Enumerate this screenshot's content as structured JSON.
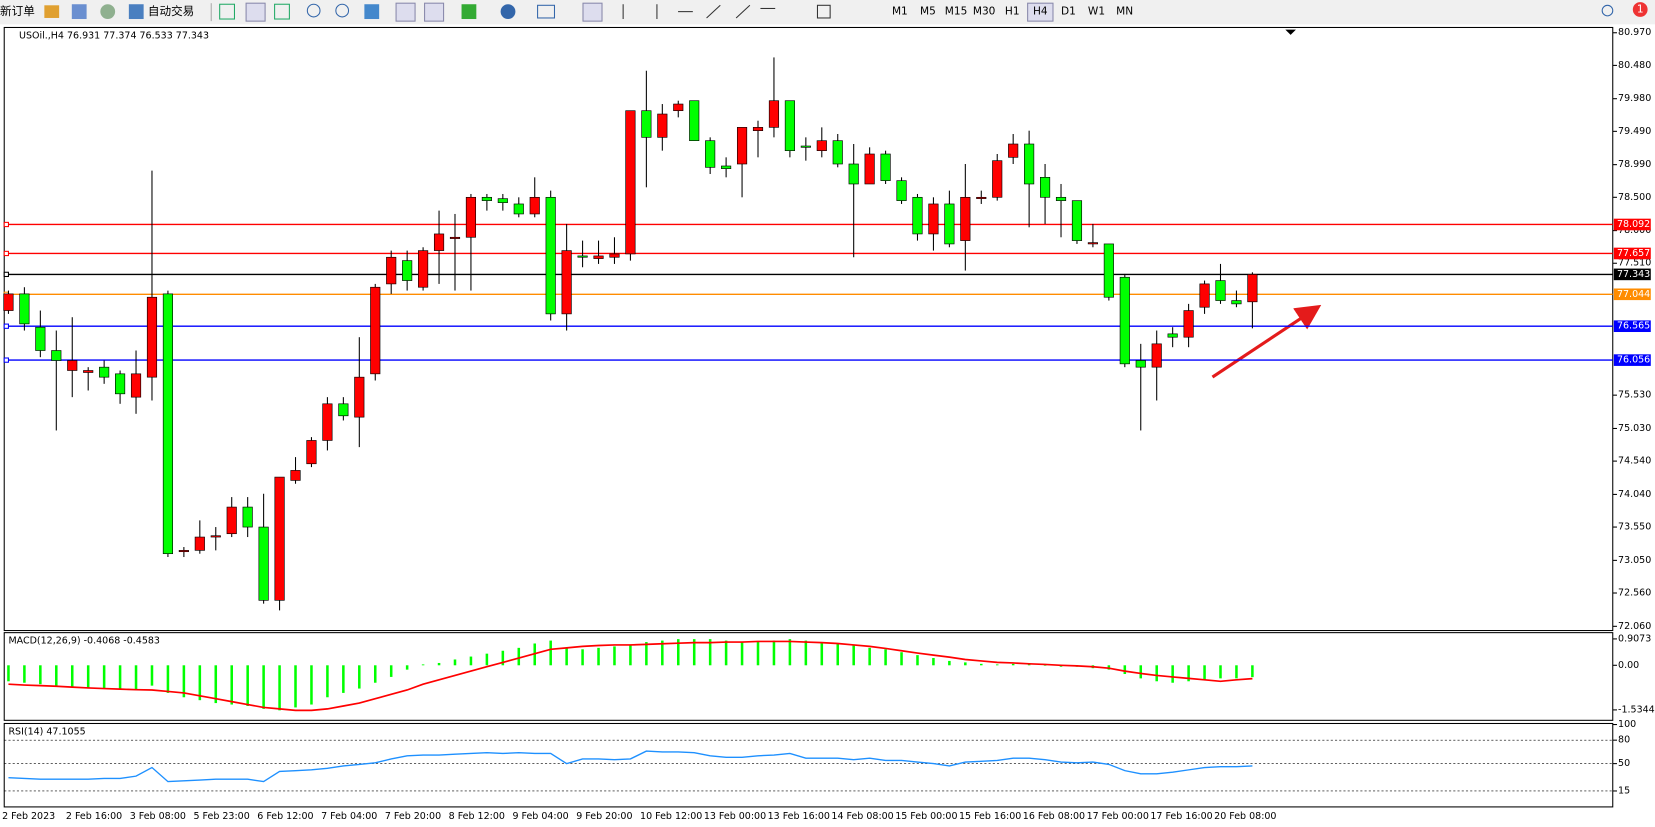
{
  "toolbar": {
    "new_order": "新订单",
    "auto_trading": "自动交易",
    "timeframes": [
      "M1",
      "M5",
      "M15",
      "M30",
      "H1",
      "H4",
      "D1",
      "W1",
      "MN"
    ],
    "active_timeframe": 5,
    "notifications": "1"
  },
  "chart_data": [
    {
      "type": "candlestick",
      "title": "USOil.,H4 76.931 77.374 76.533 77.343",
      "up_color": "#ff0000",
      "down_color": "#00ff00",
      "categories": [
        "2 Feb 2023",
        null,
        null,
        null,
        "2 Feb 16:00",
        null,
        null,
        null,
        "3 Feb 08:00",
        null,
        null,
        null,
        "5 Feb 23:00",
        null,
        null,
        null,
        "6 Feb 12:00",
        null,
        null,
        null,
        "7 Feb 04:00",
        null,
        null,
        null,
        "7 Feb 20:00",
        null,
        null,
        null,
        "8 Feb 12:00",
        null,
        null,
        null,
        "9 Feb 04:00",
        null,
        null,
        null,
        "9 Feb 20:00",
        null,
        null,
        null,
        "10 Feb 12:00",
        null,
        null,
        null,
        "13 Feb 00:00",
        null,
        null,
        null,
        "13 Feb 16:00",
        null,
        null,
        null,
        "14 Feb 08:00",
        null,
        null,
        null,
        "15 Feb 00:00",
        null,
        null,
        null,
        "15 Feb 16:00",
        null,
        null,
        null,
        "16 Feb 08:00",
        null,
        null,
        null,
        "17 Feb 00:00",
        null,
        null,
        null,
        "17 Feb 16:00",
        null,
        null,
        null,
        "20 Feb 08:00",
        null,
        null
      ],
      "ohlc": [
        [
          76.8,
          77.1,
          76.75,
          77.05
        ],
        [
          77.05,
          77.15,
          76.5,
          76.6
        ],
        [
          76.55,
          76.8,
          76.1,
          76.2
        ],
        [
          76.2,
          76.5,
          75.0,
          76.05
        ],
        [
          75.9,
          76.7,
          75.5,
          76.05
        ],
        [
          75.87,
          75.95,
          75.6,
          75.9
        ],
        [
          75.95,
          76.05,
          75.7,
          75.8
        ],
        [
          75.85,
          75.9,
          75.4,
          75.55
        ],
        [
          75.5,
          76.2,
          75.25,
          75.85
        ],
        [
          75.8,
          78.9,
          75.45,
          77.0
        ],
        [
          77.05,
          77.1,
          73.1,
          73.15
        ],
        [
          73.18,
          73.25,
          73.1,
          73.2
        ],
        [
          73.2,
          73.65,
          73.15,
          73.4
        ],
        [
          73.4,
          73.55,
          73.2,
          73.42
        ],
        [
          73.45,
          74.0,
          73.4,
          73.85
        ],
        [
          73.85,
          74.0,
          73.4,
          73.55
        ],
        [
          73.55,
          74.05,
          72.4,
          72.45
        ],
        [
          72.45,
          74.3,
          72.3,
          74.3
        ],
        [
          74.25,
          74.6,
          74.2,
          74.4
        ],
        [
          74.5,
          74.9,
          74.45,
          74.85
        ],
        [
          74.85,
          75.5,
          74.7,
          75.4
        ],
        [
          75.4,
          75.5,
          75.15,
          75.22
        ],
        [
          75.2,
          76.4,
          74.75,
          75.8
        ],
        [
          75.85,
          77.2,
          75.75,
          77.15
        ],
        [
          77.2,
          77.7,
          77.05,
          77.6
        ],
        [
          77.55,
          77.7,
          77.1,
          77.25
        ],
        [
          77.15,
          77.75,
          77.1,
          77.7
        ],
        [
          77.7,
          78.3,
          77.2,
          77.95
        ],
        [
          77.88,
          78.25,
          77.1,
          77.9
        ],
        [
          77.9,
          78.55,
          77.1,
          78.5
        ],
        [
          78.5,
          78.55,
          78.3,
          78.45
        ],
        [
          78.48,
          78.55,
          78.3,
          78.42
        ],
        [
          78.4,
          78.5,
          78.2,
          78.25
        ],
        [
          78.25,
          78.8,
          78.2,
          78.5
        ],
        [
          78.5,
          78.6,
          76.65,
          76.75
        ],
        [
          76.75,
          78.1,
          76.5,
          77.7
        ],
        [
          77.62,
          77.85,
          77.45,
          77.6
        ],
        [
          77.58,
          77.85,
          77.5,
          77.62
        ],
        [
          77.6,
          77.9,
          77.5,
          77.65
        ],
        [
          77.65,
          79.8,
          77.55,
          79.8
        ],
        [
          79.8,
          80.4,
          78.65,
          79.4
        ],
        [
          79.4,
          79.9,
          79.2,
          79.75
        ],
        [
          79.8,
          79.95,
          79.7,
          79.9
        ],
        [
          79.95,
          79.95,
          79.35,
          79.35
        ],
        [
          79.35,
          79.4,
          78.85,
          78.95
        ],
        [
          78.97,
          79.1,
          78.8,
          78.93
        ],
        [
          79.0,
          79.55,
          78.5,
          79.55
        ],
        [
          79.5,
          79.65,
          79.1,
          79.55
        ],
        [
          79.55,
          80.6,
          79.4,
          79.95
        ],
        [
          79.95,
          79.95,
          79.1,
          79.2
        ],
        [
          79.27,
          79.4,
          79.05,
          79.25
        ],
        [
          79.2,
          79.55,
          79.1,
          79.35
        ],
        [
          79.35,
          79.45,
          78.95,
          79.0
        ],
        [
          79.0,
          79.3,
          77.6,
          78.7
        ],
        [
          78.7,
          79.25,
          78.7,
          79.15
        ],
        [
          79.15,
          79.2,
          78.7,
          78.75
        ],
        [
          78.75,
          78.8,
          78.4,
          78.45
        ],
        [
          78.5,
          78.55,
          77.85,
          77.95
        ],
        [
          77.95,
          78.5,
          77.7,
          78.4
        ],
        [
          78.4,
          78.6,
          77.75,
          77.8
        ],
        [
          77.85,
          79.0,
          77.4,
          78.5
        ],
        [
          78.48,
          78.6,
          78.4,
          78.5
        ],
        [
          78.5,
          79.15,
          78.45,
          79.05
        ],
        [
          79.1,
          79.45,
          79.0,
          79.3
        ],
        [
          79.3,
          79.5,
          78.05,
          78.7
        ],
        [
          78.8,
          79.0,
          78.1,
          78.5
        ],
        [
          78.5,
          78.7,
          77.9,
          78.45
        ],
        [
          78.45,
          78.45,
          77.8,
          77.85
        ],
        [
          77.8,
          78.1,
          77.75,
          77.82
        ],
        [
          77.8,
          77.8,
          76.95,
          77.0
        ],
        [
          77.3,
          77.35,
          75.95,
          76.0
        ],
        [
          76.05,
          76.3,
          75.0,
          75.95
        ],
        [
          75.95,
          76.5,
          75.45,
          76.3
        ],
        [
          76.45,
          76.55,
          76.25,
          76.4
        ],
        [
          76.4,
          76.9,
          76.25,
          76.8
        ],
        [
          76.85,
          77.25,
          76.75,
          77.2
        ],
        [
          77.25,
          77.5,
          76.9,
          76.95
        ],
        [
          76.95,
          77.1,
          76.85,
          76.9
        ],
        [
          76.931,
          77.374,
          76.533,
          77.343
        ]
      ],
      "ylim": [
        72.06,
        80.97
      ],
      "yticks": [
        {
          "value": 80.97,
          "label": "80.970"
        },
        {
          "value": 80.48,
          "label": "80.480"
        },
        {
          "value": 79.98,
          "label": "79.980"
        },
        {
          "value": 79.49,
          "label": "79.490"
        },
        {
          "value": 78.99,
          "label": "78.990"
        },
        {
          "value": 78.5,
          "label": "78.500"
        },
        {
          "value": 78.0,
          "label": "78.000"
        },
        {
          "value": 77.51,
          "label": "77.510"
        },
        {
          "value": 75.53,
          "label": "75.530"
        },
        {
          "value": 75.03,
          "label": "75.030"
        },
        {
          "value": 74.54,
          "label": "74.540"
        },
        {
          "value": 74.04,
          "label": "74.040"
        },
        {
          "value": 73.55,
          "label": "73.550"
        },
        {
          "value": 73.05,
          "label": "73.050"
        },
        {
          "value": 72.56,
          "label": "72.560"
        },
        {
          "value": 72.06,
          "label": "72.060"
        }
      ],
      "levels": [
        {
          "value": 78.092,
          "color": "#ff0000"
        },
        {
          "value": 77.657,
          "color": "#ff0000"
        },
        {
          "value": 77.343,
          "color": "#000000"
        },
        {
          "value": 77.044,
          "color": "#ff8c00"
        },
        {
          "value": 76.565,
          "color": "#0000ff"
        },
        {
          "value": 76.056,
          "color": "#0000ff"
        }
      ]
    },
    {
      "type": "macd",
      "title": "MACD(12,26,9) -0.4068 -0.4583",
      "ylim": [
        -1.82,
        1.05
      ],
      "yticks": [
        0.9073,
        {
          "value": 0,
          "label": "0.00"
        },
        -1.5344
      ],
      "series": [
        {
          "color": "#00ff00",
          "values": [
            -0.55,
            -0.6,
            -0.65,
            -0.7,
            -0.75,
            -0.78,
            -0.8,
            -0.82,
            -0.85,
            -0.7,
            -0.95,
            -1.1,
            -1.2,
            -1.3,
            -1.35,
            -1.4,
            -1.5,
            -1.55,
            -1.45,
            -1.35,
            -1.1,
            -0.95,
            -0.8,
            -0.6,
            -0.4,
            -0.15,
            0.03,
            0.08,
            0.2,
            0.3,
            0.4,
            0.5,
            0.6,
            0.75,
            0.85,
            0.6,
            0.55,
            0.6,
            0.65,
            0.7,
            0.8,
            0.85,
            0.9,
            0.9,
            0.9,
            0.85,
            0.8,
            0.8,
            0.85,
            0.9,
            0.85,
            0.8,
            0.75,
            0.7,
            0.6,
            0.55,
            0.45,
            0.35,
            0.25,
            0.15,
            0.1,
            0.05,
            0.03,
            0.05,
            0.05,
            0.0,
            -0.05,
            -0.05,
            -0.1,
            -0.15,
            -0.3,
            -0.45,
            -0.55,
            -0.6,
            -0.55,
            -0.5,
            -0.45,
            -0.45,
            -0.4068
          ]
        },
        {
          "color": "#ff0000",
          "values": [
            -0.65,
            -0.68,
            -0.7,
            -0.72,
            -0.75,
            -0.78,
            -0.8,
            -0.82,
            -0.84,
            -0.85,
            -0.9,
            -0.95,
            -1.05,
            -1.15,
            -1.25,
            -1.35,
            -1.45,
            -1.5,
            -1.55,
            -1.55,
            -1.5,
            -1.4,
            -1.3,
            -1.15,
            -1.0,
            -0.85,
            -0.65,
            -0.5,
            -0.35,
            -0.2,
            -0.05,
            0.1,
            0.25,
            0.4,
            0.55,
            0.6,
            0.65,
            0.68,
            0.7,
            0.7,
            0.72,
            0.74,
            0.76,
            0.78,
            0.78,
            0.8,
            0.8,
            0.82,
            0.82,
            0.82,
            0.8,
            0.78,
            0.75,
            0.7,
            0.65,
            0.58,
            0.5,
            0.42,
            0.35,
            0.28,
            0.2,
            0.15,
            0.1,
            0.08,
            0.05,
            0.03,
            0.0,
            -0.02,
            -0.05,
            -0.1,
            -0.2,
            -0.28,
            -0.35,
            -0.4,
            -0.45,
            -0.5,
            -0.55,
            -0.5,
            -0.4583
          ]
        }
      ]
    },
    {
      "type": "line",
      "title": "RSI(14) 47.1055",
      "color": "#1e90ff",
      "ylim": [
        0,
        100
      ],
      "yticks": [
        100,
        80,
        50,
        15
      ],
      "values": [
        32,
        31,
        30,
        30,
        30,
        30,
        31,
        31,
        34,
        45,
        27,
        28,
        29,
        30,
        30,
        30,
        27,
        40,
        41,
        42,
        44,
        47,
        49,
        51,
        56,
        60,
        61,
        61,
        62,
        63,
        64,
        63,
        64,
        63,
        63,
        50,
        56,
        56,
        55,
        56,
        66,
        65,
        65,
        64,
        60,
        58,
        58,
        60,
        61,
        63,
        57,
        57,
        57,
        55,
        57,
        54,
        54,
        52,
        50,
        47,
        52,
        53,
        54,
        57,
        57,
        55,
        52,
        51,
        52,
        49,
        41,
        37,
        37,
        39,
        42,
        45,
        46,
        46,
        47.1055
      ]
    }
  ]
}
